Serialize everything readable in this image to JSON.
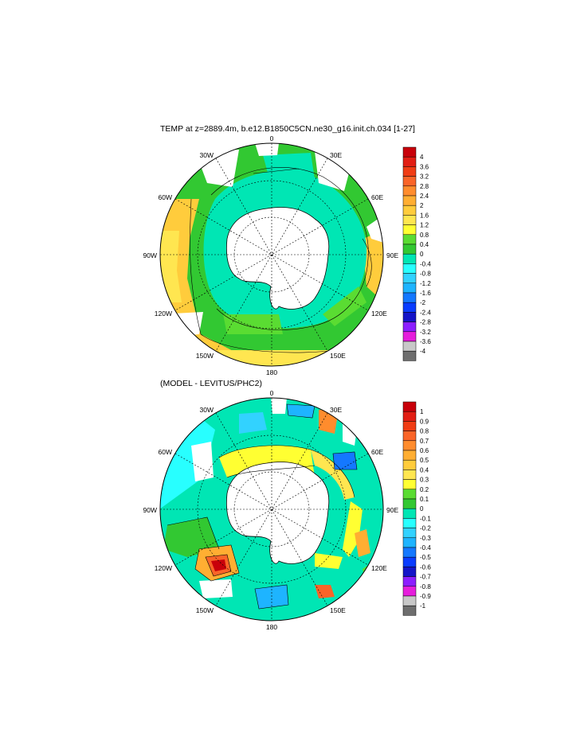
{
  "map_top": {
    "title": "TEMP at z=2889.4m, b.e12.B1850C5CN.ne30_g16.init.ch.034 [1-27]",
    "lon_labels": {
      "n": "0",
      "e30": "30E",
      "e60": "60E",
      "e90": "90E",
      "e120": "120E",
      "e150": "150E",
      "s": "180",
      "w150": "150W",
      "w120": "120W",
      "w90": "90W",
      "w60": "60W",
      "w30": "30W"
    },
    "colorbar": {
      "labels": [
        "4",
        "3.6",
        "3.2",
        "2.8",
        "2.4",
        "2",
        "1.6",
        "1.2",
        "0.8",
        "0.4",
        "0",
        "-0.4",
        "-0.8",
        "-1.2",
        "-1.6",
        "-2",
        "-2.4",
        "-2.8",
        "-3.2",
        "-3.6",
        "-4"
      ],
      "colors": [
        "#c8000a",
        "#e21e14",
        "#f03c14",
        "#fa6428",
        "#ff8c2d",
        "#ffae32",
        "#ffcc3c",
        "#ffe650",
        "#ffff32",
        "#5adc32",
        "#32c832",
        "#00e6b4",
        "#28ffff",
        "#32d2ff",
        "#1eb4ff",
        "#1478ff",
        "#0a3cff",
        "#1414c8",
        "#8c1eff",
        "#e61edc",
        "#c8c8c8",
        "#6e6e6e"
      ]
    }
  },
  "map_bottom": {
    "title": "(MODEL - LEVITUS/PHC2)",
    "lon_labels": {
      "n": "0",
      "e30": "30E",
      "e60": "60E",
      "e90": "90E",
      "e120": "120E",
      "e150": "150E",
      "s": "180",
      "w150": "150W",
      "w120": "120W",
      "w90": "90W",
      "w60": "60W",
      "w30": "30W"
    },
    "colorbar": {
      "labels": [
        "1",
        "0.9",
        "0.8",
        "0.7",
        "0.6",
        "0.5",
        "0.4",
        "0.3",
        "0.2",
        "0.1",
        "0",
        "-0.1",
        "-0.2",
        "-0.3",
        "-0.4",
        "-0.5",
        "-0.6",
        "-0.7",
        "-0.8",
        "-0.9",
        "-1"
      ],
      "colors": [
        "#c8000a",
        "#e21e14",
        "#f03c14",
        "#fa6428",
        "#ff8c2d",
        "#ffae32",
        "#ffcc3c",
        "#ffe650",
        "#ffff32",
        "#5adc32",
        "#32c832",
        "#00e6b4",
        "#28ffff",
        "#32d2ff",
        "#1eb4ff",
        "#1478ff",
        "#0a3cff",
        "#1414c8",
        "#8c1eff",
        "#e61edc",
        "#c8c8c8",
        "#6e6e6e"
      ]
    }
  }
}
